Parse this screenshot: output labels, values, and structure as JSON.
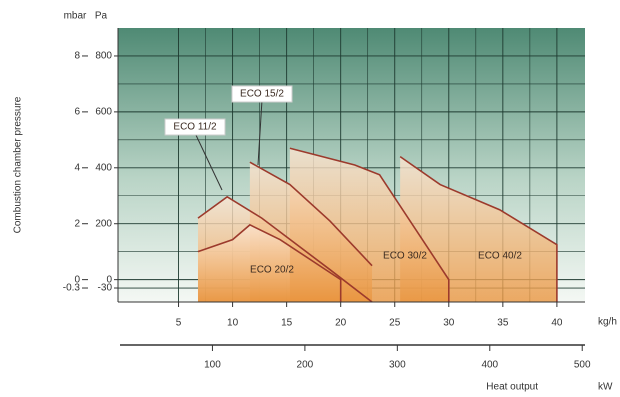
{
  "chart_data": {
    "type": "line",
    "y_label": "Combustion chamber pressure",
    "y_unit": "mbar",
    "y2_unit": "Pa",
    "x_unit": "kg/h",
    "x2_label": "Heat output",
    "x2_unit": "kW",
    "xlim": [
      -0.6,
      42.6
    ],
    "xticks": [
      5,
      10,
      15,
      20,
      25,
      30,
      35,
      40
    ],
    "x2lim": [
      0,
      503
    ],
    "x2ticks": [
      100,
      200,
      300,
      400,
      500
    ],
    "ylim": [
      -0.8,
      9
    ],
    "yticks": [
      -0.3,
      0,
      2,
      4,
      6,
      8
    ],
    "y2lim": [
      -80,
      900
    ],
    "y2ticks": [
      -30,
      0,
      200,
      400,
      600,
      800
    ],
    "grid": true,
    "series": [
      {
        "name": "ECO 11/2",
        "color": "#9c3a2c",
        "x": [
          6.8,
          9.5,
          12.7,
          19,
          22.9
        ],
        "values": [
          2.2,
          2.96,
          2.2,
          0.36,
          -0.8
        ]
      },
      {
        "name": "ECO 15/2",
        "color": "#9c3a2c",
        "x": [
          11.6,
          15.3,
          19,
          22.9
        ],
        "values": [
          4.2,
          3.4,
          2.1,
          0.5
        ]
      },
      {
        "name": "ECO 20/2",
        "color": "#9c3a2c",
        "x": [
          6.8,
          10,
          11.6,
          14.4,
          20,
          20
        ],
        "values": [
          1.0,
          1.43,
          1.96,
          1.43,
          0,
          -0.8
        ]
      },
      {
        "name": "ECO 30/2",
        "color": "#9c3a2c",
        "x": [
          15.3,
          21.3,
          23.6,
          30,
          30
        ],
        "values": [
          4.7,
          4.1,
          3.75,
          0,
          -0.8
        ]
      },
      {
        "name": "ECO 40/2",
        "color": "#9c3a2c",
        "x": [
          25.5,
          29.2,
          34.7,
          40,
          40
        ],
        "values": [
          4.4,
          3.4,
          2.5,
          1.25,
          -0.8
        ]
      }
    ]
  }
}
